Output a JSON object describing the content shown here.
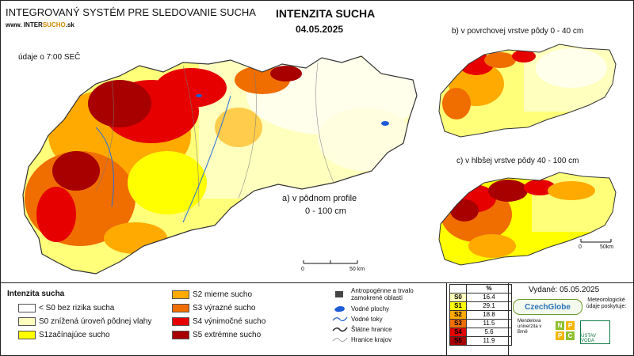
{
  "header": {
    "system_title": "INTEGROVANÝ SYSTÉM PRE SLEDOVANIE SUCHA",
    "website_prefix": "www. INTER",
    "website_brand": "SUCHO",
    "website_suffix": ".sk",
    "data_time": "údaje o 7:00 SEČ",
    "main_title": "INTENZITA SUCHA",
    "date": "04.05.2025"
  },
  "maps": {
    "main_label_line1": "a) v pôdnom profile",
    "main_label_line2": "0 - 100 cm",
    "inset_b_label": "b) v povrchovej vrstve pôdy 0 - 40 cm",
    "inset_c_label": "c) v hlbšej vrstve pôdy 40 - 100 cm",
    "scale_zero": "0",
    "scale_end": "50 km",
    "inset_scale_zero": "0",
    "inset_scale_end": "50km"
  },
  "legend": {
    "title": "Intenzita sucha",
    "classes": [
      {
        "label": "< S0 bez rizika sucha",
        "color": "#ffffff"
      },
      {
        "label": "S0 znížená úroveň pôdnej vlahy",
        "color": "#ffffbe"
      },
      {
        "label": "S1začínajúce sucho",
        "color": "#ffff00"
      },
      {
        "label": "S2 mierne sucho",
        "color": "#ffaa00"
      },
      {
        "label": "S3 výrazné sucho",
        "color": "#f06d00"
      },
      {
        "label": "S4 výnimočné sucho",
        "color": "#e60000"
      },
      {
        "label": "S5 extrémne sucho",
        "color": "#a80000"
      }
    ],
    "symbols": {
      "anthropogenic": "Antropogénne a trvalo zamokrené oblasti",
      "water_areas": "Vodné plochy",
      "water_streams": "Vodné toky",
      "state_border": "Štátne hranice",
      "region_border": "Hranice krajov"
    }
  },
  "stats": {
    "header_pct": "%",
    "rows": [
      {
        "code": "S0",
        "value": "16.4",
        "color": "#ffffbe"
      },
      {
        "code": "S1",
        "value": "29.1",
        "color": "#ffff00"
      },
      {
        "code": "S2",
        "value": "18.8",
        "color": "#ffaa00"
      },
      {
        "code": "S3",
        "value": "11.5",
        "color": "#f06d00"
      },
      {
        "code": "S4",
        "value": "5.6",
        "color": "#e60000"
      },
      {
        "code": "S5",
        "value": "11.9",
        "color": "#a80000"
      }
    ]
  },
  "footer": {
    "issued": "Vydané: 05.05.2025",
    "czechglobe": "CzechGlobe",
    "met_note": "Meteorologické údaje poskytuje:",
    "mendel": "Mendelova univerzita v Brně",
    "npc": [
      "N",
      "P",
      "P",
      "C"
    ],
    "ustav": "ÚSTAV VODA"
  }
}
